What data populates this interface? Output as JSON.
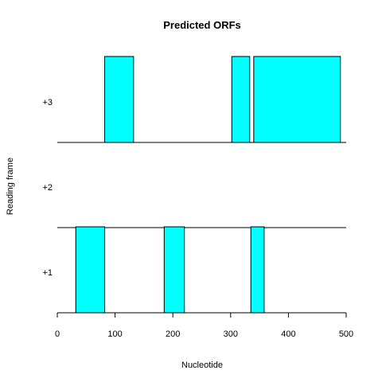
{
  "chart_data": {
    "type": "bar",
    "title": "Predicted ORFs",
    "xlabel": "Nucleotide",
    "ylabel": "Reading frame",
    "xlim": [
      0,
      500
    ],
    "x_ticks": [
      0,
      100,
      200,
      300,
      400,
      500
    ],
    "grid": false,
    "frames": [
      {
        "label": "+3",
        "orfs": [
          {
            "start": 82,
            "end": 132
          },
          {
            "start": 302,
            "end": 333
          },
          {
            "start": 340,
            "end": 490
          }
        ]
      },
      {
        "label": "+2",
        "orfs": []
      },
      {
        "label": "+1",
        "orfs": [
          {
            "start": 32,
            "end": 82
          },
          {
            "start": 185,
            "end": 220
          },
          {
            "start": 335,
            "end": 358
          }
        ]
      }
    ],
    "bar_fill": "#00ffff",
    "bar_stroke": "#000000",
    "line_color": "#000000"
  }
}
